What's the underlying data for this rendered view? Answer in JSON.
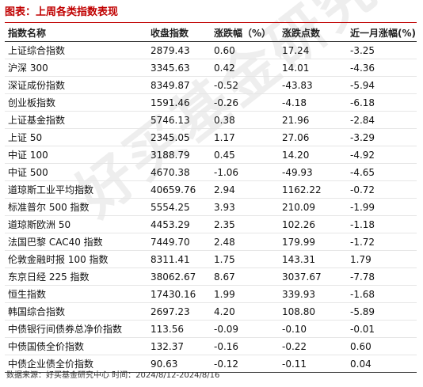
{
  "title": "图表：上周各类指数表现",
  "columns": [
    "指数名称",
    "收盘指数",
    "涨跌幅（%）",
    "涨跌点数",
    "近一月涨幅(%)"
  ],
  "rows": [
    [
      "上证综合指数",
      "2879.43",
      "0.60",
      "17.24",
      "-3.25"
    ],
    [
      "沪深 300",
      "3345.63",
      "0.42",
      "14.01",
      "-4.36"
    ],
    [
      "深证成份指数",
      "8349.87",
      "-0.52",
      "-43.83",
      "-5.94"
    ],
    [
      "创业板指数",
      "1591.46",
      "-0.26",
      "-4.18",
      "-6.18"
    ],
    [
      "上证基金指数",
      "5746.13",
      "0.38",
      "21.96",
      "-2.84"
    ],
    [
      "上证 50",
      "2345.05",
      "1.17",
      "27.06",
      "-3.29"
    ],
    [
      "中证 100",
      "3188.79",
      "0.45",
      "14.20",
      "-4.92"
    ],
    [
      "中证 500",
      "4670.38",
      "-1.06",
      "-49.93",
      "-4.65"
    ],
    [
      "道琼斯工业平均指数",
      "40659.76",
      "2.94",
      "1162.22",
      "-0.72"
    ],
    [
      "标准普尔 500 指数",
      "5554.25",
      "3.93",
      "210.09",
      "-1.99"
    ],
    [
      "道琼斯欧洲 50",
      "4453.29",
      "2.35",
      "102.26",
      "-1.18"
    ],
    [
      "法国巴黎 CAC40 指数",
      "7449.70",
      "2.48",
      "179.99",
      "-1.72"
    ],
    [
      "伦敦金融时报 100 指数",
      "8311.41",
      "1.75",
      "143.31",
      "1.79"
    ],
    [
      "东京日经 225 指数",
      "38062.67",
      "8.67",
      "3037.67",
      "-7.78"
    ],
    [
      "恒生指数",
      "17430.16",
      "1.99",
      "339.93",
      "-1.68"
    ],
    [
      "韩国综合指数",
      "2697.23",
      "4.20",
      "108.80",
      "-5.89"
    ],
    [
      "中债银行间债券总净价指数",
      "113.56",
      "-0.09",
      "-0.10",
      "-0.01"
    ],
    [
      "中债国债全价指数",
      "132.37",
      "-0.16",
      "-0.22",
      "0.60"
    ],
    [
      "中债企业债全价指数",
      "90.63",
      "-0.12",
      "-0.11",
      "0.04"
    ]
  ],
  "footer": "数据来源：好买基金研究中心 时间：2024/8/12-2024/8/16",
  "watermark": "好买基金研究中心",
  "colors": {
    "title": "#c00000",
    "rule": "#c00000"
  }
}
